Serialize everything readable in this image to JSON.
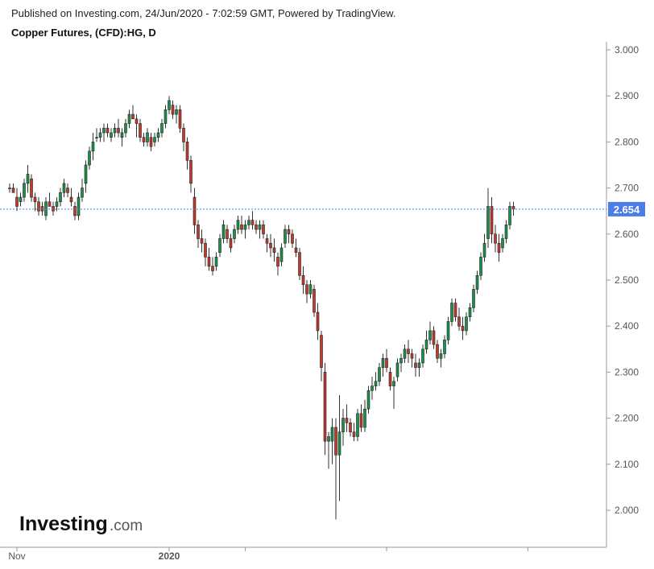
{
  "header": {
    "published": "Published on Investing.com, 24/Jun/2020 - 7:02:59 GMT, Powered by TradingView.",
    "title": "Copper Futures, (CFD):HG, D"
  },
  "logo": {
    "main": "Investing",
    "suffix": ".com"
  },
  "colors": {
    "up": "#1e8f4a",
    "down": "#c0392b",
    "wick": "#333333",
    "last_price_line": "#4a7de8",
    "last_price_label_bg": "#4a7de8",
    "axis": "#9a9a9a"
  },
  "chart_data": {
    "type": "candlestick",
    "symbol": "Copper Futures, (CFD):HG",
    "interval": "D",
    "xlabel": "",
    "ylabel": "",
    "ylim": [
      1.95,
      3.0
    ],
    "y_ticks": [
      "3.000",
      "2.900",
      "2.800",
      "2.700",
      "2.600",
      "2.500",
      "2.400",
      "2.300",
      "2.200",
      "2.100",
      "2.000"
    ],
    "x_ticks": [
      {
        "label": "Nov",
        "index": 2
      },
      {
        "label": "2020",
        "index": 44
      },
      {
        "label": "",
        "index": 65
      },
      {
        "label": "",
        "index": 104
      },
      {
        "label": "",
        "index": 143
      }
    ],
    "last_price": 2.654,
    "last_price_label": "2.654",
    "candles": [
      [
        2.7,
        2.71,
        2.69,
        2.7
      ],
      [
        2.7,
        2.71,
        2.69,
        2.69
      ],
      [
        2.68,
        2.7,
        2.65,
        2.66
      ],
      [
        2.67,
        2.69,
        2.66,
        2.68
      ],
      [
        2.68,
        2.72,
        2.67,
        2.71
      ],
      [
        2.71,
        2.75,
        2.69,
        2.73
      ],
      [
        2.72,
        2.73,
        2.67,
        2.68
      ],
      [
        2.68,
        2.69,
        2.65,
        2.67
      ],
      [
        2.67,
        2.68,
        2.64,
        2.65
      ],
      [
        2.66,
        2.67,
        2.64,
        2.65
      ],
      [
        2.64,
        2.68,
        2.63,
        2.67
      ],
      [
        2.67,
        2.69,
        2.66,
        2.66
      ],
      [
        2.66,
        2.67,
        2.64,
        2.65
      ],
      [
        2.66,
        2.68,
        2.65,
        2.67
      ],
      [
        2.67,
        2.7,
        2.66,
        2.69
      ],
      [
        2.69,
        2.72,
        2.68,
        2.71
      ],
      [
        2.7,
        2.71,
        2.68,
        2.69
      ],
      [
        2.68,
        2.7,
        2.66,
        2.67
      ],
      [
        2.66,
        2.67,
        2.63,
        2.64
      ],
      [
        2.64,
        2.69,
        2.63,
        2.68
      ],
      [
        2.68,
        2.72,
        2.67,
        2.7
      ],
      [
        2.71,
        2.76,
        2.69,
        2.75
      ],
      [
        2.75,
        2.79,
        2.74,
        2.78
      ],
      [
        2.78,
        2.82,
        2.76,
        2.8
      ],
      [
        2.81,
        2.83,
        2.8,
        2.81
      ],
      [
        2.81,
        2.83,
        2.8,
        2.82
      ],
      [
        2.82,
        2.84,
        2.8,
        2.83
      ],
      [
        2.83,
        2.84,
        2.81,
        2.82
      ],
      [
        2.81,
        2.83,
        2.8,
        2.82
      ],
      [
        2.82,
        2.84,
        2.81,
        2.83
      ],
      [
        2.83,
        2.85,
        2.81,
        2.82
      ],
      [
        2.81,
        2.83,
        2.79,
        2.82
      ],
      [
        2.82,
        2.85,
        2.81,
        2.84
      ],
      [
        2.84,
        2.87,
        2.83,
        2.86
      ],
      [
        2.86,
        2.88,
        2.85,
        2.85
      ],
      [
        2.85,
        2.86,
        2.81,
        2.84
      ],
      [
        2.84,
        2.85,
        2.8,
        2.81
      ],
      [
        2.81,
        2.82,
        2.79,
        2.8
      ],
      [
        2.8,
        2.83,
        2.79,
        2.82
      ],
      [
        2.81,
        2.82,
        2.78,
        2.79
      ],
      [
        2.8,
        2.82,
        2.79,
        2.81
      ],
      [
        2.81,
        2.83,
        2.8,
        2.82
      ],
      [
        2.82,
        2.85,
        2.81,
        2.84
      ],
      [
        2.84,
        2.88,
        2.83,
        2.87
      ],
      [
        2.87,
        2.9,
        2.86,
        2.89
      ],
      [
        2.88,
        2.89,
        2.85,
        2.86
      ],
      [
        2.86,
        2.88,
        2.84,
        2.87
      ],
      [
        2.87,
        2.88,
        2.82,
        2.83
      ],
      [
        2.83,
        2.84,
        2.78,
        2.8
      ],
      [
        2.8,
        2.81,
        2.74,
        2.76
      ],
      [
        2.76,
        2.77,
        2.69,
        2.71
      ],
      [
        2.68,
        2.7,
        2.6,
        2.62
      ],
      [
        2.62,
        2.63,
        2.57,
        2.59
      ],
      [
        2.59,
        2.61,
        2.56,
        2.58
      ],
      [
        2.58,
        2.59,
        2.53,
        2.55
      ],
      [
        2.55,
        2.57,
        2.52,
        2.53
      ],
      [
        2.53,
        2.55,
        2.51,
        2.52
      ],
      [
        2.53,
        2.56,
        2.52,
        2.55
      ],
      [
        2.56,
        2.6,
        2.55,
        2.59
      ],
      [
        2.59,
        2.63,
        2.58,
        2.62
      ],
      [
        2.61,
        2.62,
        2.58,
        2.59
      ],
      [
        2.59,
        2.6,
        2.56,
        2.57
      ],
      [
        2.59,
        2.62,
        2.58,
        2.61
      ],
      [
        2.61,
        2.64,
        2.6,
        2.63
      ],
      [
        2.62,
        2.64,
        2.6,
        2.61
      ],
      [
        2.61,
        2.63,
        2.59,
        2.62
      ],
      [
        2.62,
        2.64,
        2.61,
        2.63
      ],
      [
        2.63,
        2.65,
        2.61,
        2.62
      ],
      [
        2.62,
        2.63,
        2.6,
        2.61
      ],
      [
        2.61,
        2.63,
        2.59,
        2.62
      ],
      [
        2.62,
        2.63,
        2.59,
        2.6
      ],
      [
        2.59,
        2.6,
        2.56,
        2.58
      ],
      [
        2.58,
        2.6,
        2.55,
        2.57
      ],
      [
        2.57,
        2.59,
        2.54,
        2.56
      ],
      [
        2.55,
        2.56,
        2.51,
        2.53
      ],
      [
        2.54,
        2.58,
        2.53,
        2.57
      ],
      [
        2.58,
        2.62,
        2.57,
        2.61
      ],
      [
        2.61,
        2.62,
        2.58,
        2.6
      ],
      [
        2.6,
        2.61,
        2.57,
        2.58
      ],
      [
        2.57,
        2.59,
        2.55,
        2.56
      ],
      [
        2.56,
        2.57,
        2.5,
        2.51
      ],
      [
        2.51,
        2.53,
        2.47,
        2.49
      ],
      [
        2.49,
        2.5,
        2.45,
        2.47
      ],
      [
        2.47,
        2.5,
        2.46,
        2.49
      ],
      [
        2.48,
        2.49,
        2.42,
        2.43
      ],
      [
        2.43,
        2.45,
        2.37,
        2.39
      ],
      [
        2.38,
        2.39,
        2.28,
        2.31
      ],
      [
        2.3,
        2.32,
        2.12,
        2.15
      ],
      [
        2.15,
        2.17,
        2.09,
        2.16
      ],
      [
        2.15,
        2.2,
        2.1,
        2.18
      ],
      [
        2.18,
        2.2,
        1.98,
        2.12
      ],
      [
        2.12,
        2.25,
        2.02,
        2.17
      ],
      [
        2.17,
        2.22,
        2.14,
        2.2
      ],
      [
        2.2,
        2.23,
        2.17,
        2.19
      ],
      [
        2.19,
        2.2,
        2.16,
        2.17
      ],
      [
        2.17,
        2.19,
        2.15,
        2.16
      ],
      [
        2.16,
        2.22,
        2.15,
        2.21
      ],
      [
        2.21,
        2.23,
        2.17,
        2.18
      ],
      [
        2.18,
        2.24,
        2.17,
        2.22
      ],
      [
        2.22,
        2.27,
        2.21,
        2.26
      ],
      [
        2.26,
        2.29,
        2.24,
        2.27
      ],
      [
        2.27,
        2.3,
        2.26,
        2.28
      ],
      [
        2.28,
        2.32,
        2.27,
        2.31
      ],
      [
        2.31,
        2.34,
        2.29,
        2.33
      ],
      [
        2.33,
        2.35,
        2.3,
        2.31
      ],
      [
        2.3,
        2.31,
        2.26,
        2.27
      ],
      [
        2.27,
        2.29,
        2.22,
        2.28
      ],
      [
        2.29,
        2.33,
        2.28,
        2.32
      ],
      [
        2.32,
        2.34,
        2.3,
        2.33
      ],
      [
        2.33,
        2.36,
        2.32,
        2.35
      ],
      [
        2.35,
        2.37,
        2.32,
        2.34
      ],
      [
        2.34,
        2.35,
        2.31,
        2.33
      ],
      [
        2.32,
        2.34,
        2.29,
        2.31
      ],
      [
        2.31,
        2.33,
        2.29,
        2.32
      ],
      [
        2.32,
        2.36,
        2.31,
        2.35
      ],
      [
        2.35,
        2.39,
        2.34,
        2.37
      ],
      [
        2.37,
        2.41,
        2.36,
        2.39
      ],
      [
        2.39,
        2.4,
        2.35,
        2.36
      ],
      [
        2.36,
        2.37,
        2.32,
        2.33
      ],
      [
        2.33,
        2.35,
        2.31,
        2.34
      ],
      [
        2.34,
        2.38,
        2.33,
        2.37
      ],
      [
        2.37,
        2.42,
        2.36,
        2.41
      ],
      [
        2.41,
        2.46,
        2.4,
        2.45
      ],
      [
        2.45,
        2.46,
        2.41,
        2.42
      ],
      [
        2.42,
        2.44,
        2.39,
        2.4
      ],
      [
        2.4,
        2.42,
        2.37,
        2.39
      ],
      [
        2.39,
        2.43,
        2.38,
        2.42
      ],
      [
        2.42,
        2.45,
        2.41,
        2.44
      ],
      [
        2.44,
        2.49,
        2.43,
        2.48
      ],
      [
        2.48,
        2.52,
        2.47,
        2.51
      ],
      [
        2.51,
        2.56,
        2.5,
        2.55
      ],
      [
        2.55,
        2.6,
        2.54,
        2.58
      ],
      [
        2.59,
        2.7,
        2.57,
        2.66
      ],
      [
        2.66,
        2.68,
        2.58,
        2.6
      ],
      [
        2.6,
        2.62,
        2.56,
        2.58
      ],
      [
        2.58,
        2.6,
        2.54,
        2.56
      ],
      [
        2.57,
        2.6,
        2.56,
        2.59
      ],
      [
        2.59,
        2.63,
        2.58,
        2.62
      ],
      [
        2.62,
        2.67,
        2.61,
        2.66
      ],
      [
        2.66,
        2.67,
        2.64,
        2.654
      ]
    ]
  }
}
